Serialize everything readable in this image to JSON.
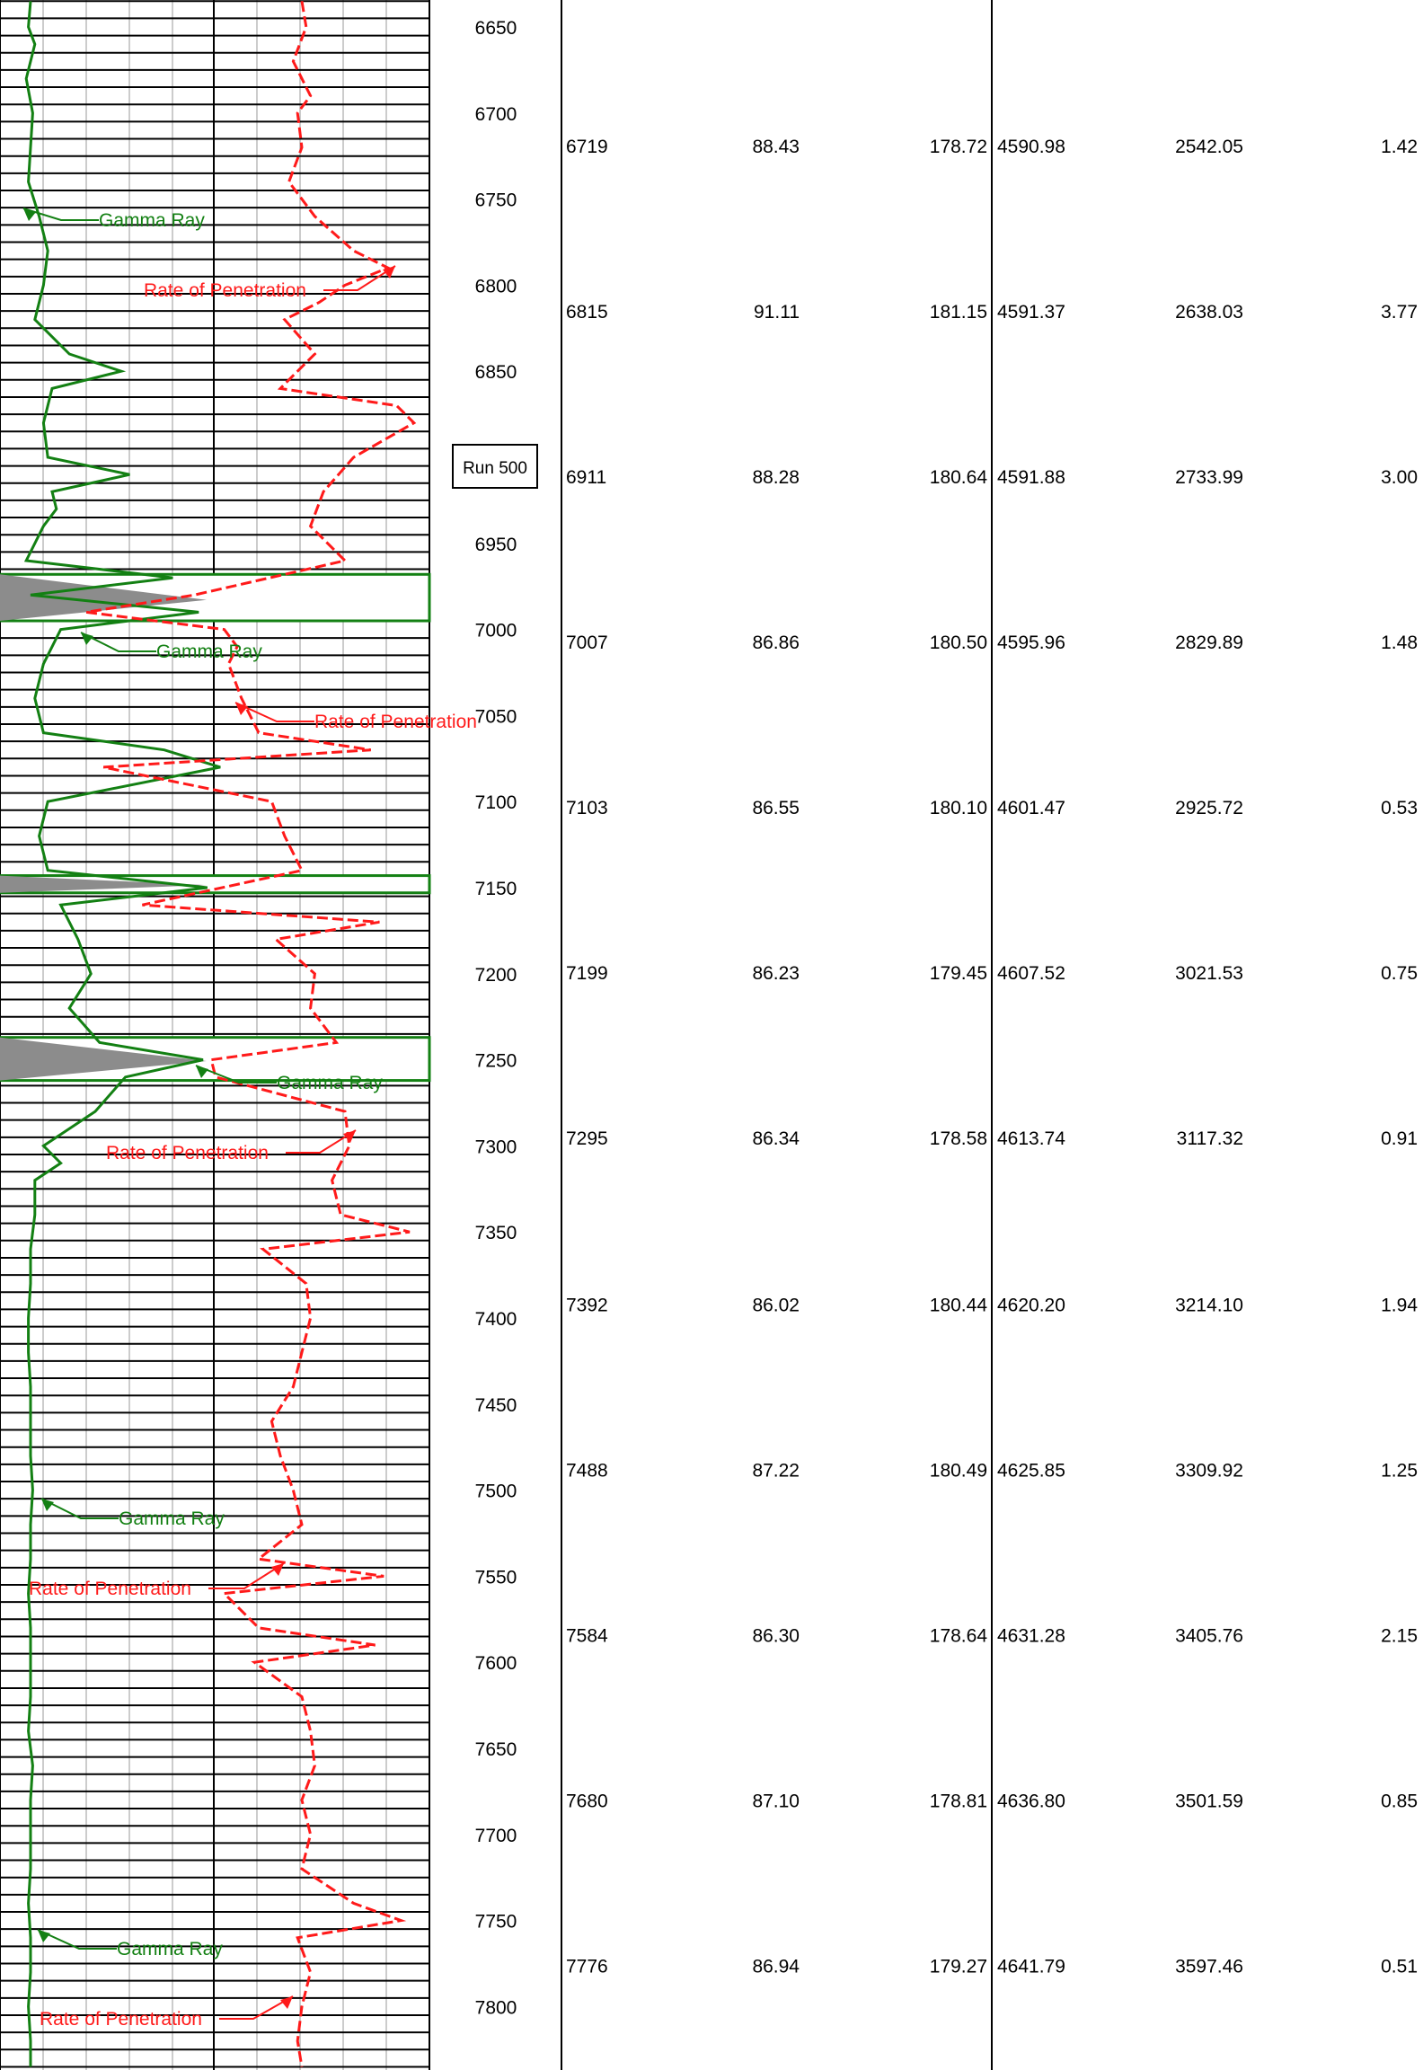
{
  "colors": {
    "gamma": "#138013",
    "rop": "#ff1a1a",
    "shade": "#8c8c8c",
    "grid": "#000000"
  },
  "run_label": "Run 500",
  "depth_ticks": [
    "6650",
    "6700",
    "6750",
    "6800",
    "6850",
    "6950",
    "7000",
    "7050",
    "7100",
    "7150",
    "7200",
    "7250",
    "7300",
    "7350",
    "7400",
    "7450",
    "7500",
    "7550",
    "7600",
    "7650",
    "7700",
    "7750",
    "7800"
  ],
  "annotations": {
    "gamma_ray": "Gamma Ray",
    "rate_of_penetration": "Rate of Penetration"
  },
  "survey_rows": [
    [
      "6719",
      "88.43",
      "178.72",
      "4590.98",
      "2542.05",
      "1.42"
    ],
    [
      "6815",
      "91.11",
      "181.15",
      "4591.37",
      "2638.03",
      "3.77"
    ],
    [
      "6911",
      "88.28",
      "180.64",
      "4591.88",
      "2733.99",
      "3.00"
    ],
    [
      "7007",
      "86.86",
      "180.50",
      "4595.96",
      "2829.89",
      "1.48"
    ],
    [
      "7103",
      "86.55",
      "180.10",
      "4601.47",
      "2925.72",
      "0.53"
    ],
    [
      "7199",
      "86.23",
      "179.45",
      "4607.52",
      "3021.53",
      "0.75"
    ],
    [
      "7295",
      "86.34",
      "178.58",
      "4613.74",
      "3117.32",
      "0.91"
    ],
    [
      "7392",
      "86.02",
      "180.44",
      "4620.20",
      "3214.10",
      "1.94"
    ],
    [
      "7488",
      "87.22",
      "180.49",
      "4625.85",
      "3309.92",
      "1.25"
    ],
    [
      "7584",
      "86.30",
      "178.64",
      "4631.28",
      "3405.76",
      "2.15"
    ],
    [
      "7680",
      "87.10",
      "178.81",
      "4636.80",
      "3501.59",
      "0.85"
    ],
    [
      "7776",
      "86.94",
      "179.27",
      "4641.79",
      "3597.46",
      "0.51"
    ]
  ],
  "chart_data": {
    "type": "line",
    "depth_range": [
      6635,
      7835
    ],
    "series": [
      {
        "name": "Gamma Ray",
        "depth": [
          6635,
          6650,
          6660,
          6680,
          6700,
          6720,
          6740,
          6760,
          6780,
          6800,
          6820,
          6840,
          6850,
          6860,
          6880,
          6900,
          6910,
          6920,
          6930,
          6940,
          6960,
          6970,
          6980,
          6990,
          7000,
          7020,
          7040,
          7060,
          7070,
          7080,
          7100,
          7120,
          7140,
          7150,
          7160,
          7180,
          7200,
          7220,
          7240,
          7250,
          7260,
          7280,
          7300,
          7310,
          7320,
          7340,
          7360,
          7380,
          7400,
          7420,
          7440,
          7460,
          7480,
          7500,
          7520,
          7540,
          7560,
          7580,
          7600,
          7620,
          7640,
          7660,
          7680,
          7700,
          7720,
          7740,
          7760,
          7780,
          7800,
          7820,
          7835
        ],
        "values": [
          0.5,
          0.45,
          0.6,
          0.4,
          0.55,
          0.5,
          0.45,
          0.7,
          0.9,
          0.8,
          0.6,
          1.4,
          2.6,
          1.0,
          0.8,
          0.9,
          2.8,
          1.0,
          1.1,
          0.8,
          0.4,
          3.8,
          0.5,
          4.4,
          1.2,
          0.8,
          0.6,
          0.8,
          3.6,
          4.9,
          0.9,
          0.7,
          0.9,
          4.6,
          1.2,
          1.6,
          1.9,
          1.4,
          2.1,
          4.5,
          2.7,
          2.0,
          0.8,
          1.2,
          0.6,
          0.6,
          0.5,
          0.5,
          0.45,
          0.45,
          0.5,
          0.5,
          0.5,
          0.55,
          0.5,
          0.5,
          0.45,
          0.5,
          0.5,
          0.5,
          0.45,
          0.55,
          0.5,
          0.5,
          0.5,
          0.45,
          0.5,
          0.5,
          0.45,
          0.5,
          0.5
        ]
      },
      {
        "name": "Rate of Penetration",
        "depth": [
          6635,
          6650,
          6670,
          6690,
          6700,
          6720,
          6740,
          6760,
          6780,
          6790,
          6800,
          6810,
          6820,
          6840,
          6860,
          6870,
          6880,
          6900,
          6920,
          6940,
          6960,
          6980,
          6990,
          7000,
          7010,
          7020,
          7040,
          7060,
          7070,
          7080,
          7100,
          7120,
          7140,
          7160,
          7170,
          7180,
          7200,
          7220,
          7240,
          7250,
          7260,
          7280,
          7300,
          7320,
          7340,
          7350,
          7360,
          7380,
          7400,
          7420,
          7440,
          7460,
          7480,
          7500,
          7520,
          7540,
          7550,
          7560,
          7580,
          7590,
          7600,
          7620,
          7640,
          7660,
          7680,
          7700,
          7720,
          7740,
          7750,
          7760,
          7780,
          7800,
          7820,
          7835
        ],
        "values": [
          7.0,
          7.1,
          6.8,
          7.2,
          6.9,
          7.0,
          6.7,
          7.3,
          8.2,
          9.0,
          8.0,
          7.4,
          6.6,
          7.3,
          6.5,
          9.2,
          9.6,
          8.2,
          7.5,
          7.2,
          8.0,
          4.5,
          2.0,
          5.2,
          5.5,
          5.3,
          5.6,
          6.0,
          8.6,
          2.4,
          6.3,
          6.6,
          7.0,
          3.3,
          8.8,
          6.4,
          7.3,
          7.2,
          7.8,
          4.9,
          5.0,
          8.0,
          8.1,
          7.7,
          7.9,
          9.5,
          6.1,
          7.1,
          7.2,
          7.0,
          6.8,
          6.3,
          6.5,
          6.8,
          7.0,
          6.0,
          8.9,
          5.2,
          6.0,
          8.7,
          5.9,
          7.0,
          7.2,
          7.3,
          7.0,
          7.2,
          7.0,
          8.2,
          9.3,
          6.9,
          7.2,
          7.0,
          6.9,
          7.0
        ]
      }
    ],
    "shaded_intervals": [
      [
        6968,
        6995
      ],
      [
        7143,
        7153
      ],
      [
        7237,
        7262
      ]
    ]
  }
}
